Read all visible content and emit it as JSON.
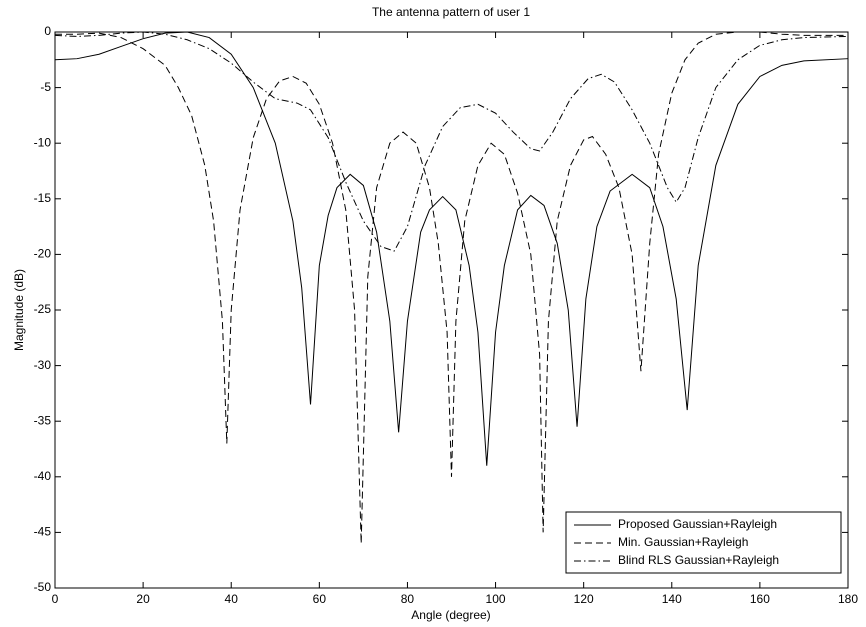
{
  "chart_data": {
    "type": "line",
    "title": "The antenna pattern of user 1",
    "x_label": "Angle (degree)",
    "y_label": "Magnitude (dB)",
    "xlim": [
      0,
      180
    ],
    "ylim": [
      -50,
      0
    ],
    "xticks": [
      0,
      20,
      40,
      60,
      80,
      100,
      120,
      140,
      160,
      180
    ],
    "yticks": [
      -50,
      -45,
      -40,
      -35,
      -30,
      -25,
      -20,
      -15,
      -10,
      -5,
      0
    ],
    "legend": "lower right",
    "series": [
      {
        "name": "Proposed Gaussian+Rayleigh",
        "color": "#000000",
        "dash": "solid",
        "x": [
          0,
          5,
          10,
          15,
          20,
          25,
          30,
          35,
          40,
          45,
          50,
          54,
          56,
          58,
          60,
          62,
          64,
          67,
          70,
          73,
          76,
          78,
          80,
          83,
          85,
          88,
          91,
          94,
          96,
          98,
          100,
          102,
          105,
          108,
          111,
          114,
          116.5,
          118.5,
          120.5,
          123,
          126,
          131,
          135,
          138,
          141,
          143.5,
          146,
          150,
          155,
          160,
          165,
          170,
          180
        ],
        "values": [
          -2.5,
          -2.4,
          -2.0,
          -1.3,
          -0.6,
          -0.1,
          0,
          -0.5,
          -2,
          -5,
          -10,
          -17,
          -23,
          -33.5,
          -21,
          -16.5,
          -14,
          -12.8,
          -13.8,
          -18,
          -26,
          -36,
          -26,
          -18,
          -16,
          -14.8,
          -16,
          -21,
          -27,
          -39,
          -27,
          -21,
          -16,
          -14.7,
          -15.6,
          -19,
          -25,
          -35.5,
          -24,
          -17.5,
          -14.3,
          -12.8,
          -14,
          -17.5,
          -24,
          -34,
          -21,
          -12,
          -6.5,
          -4,
          -3,
          -2.6,
          -2.4
        ]
      },
      {
        "name": "Min. Gaussian+Rayleigh",
        "color": "#000000",
        "dash": "dashed",
        "x": [
          0,
          5,
          10,
          15,
          20,
          25,
          28,
          31,
          34,
          36,
          38,
          39,
          40,
          42,
          45,
          48,
          51,
          54,
          57,
          60,
          63,
          66,
          68,
          69.5,
          71,
          73,
          76,
          79,
          82,
          85,
          87,
          89,
          90,
          91,
          93,
          96,
          99,
          102,
          105,
          108,
          110,
          110.8,
          112,
          114,
          117,
          120,
          122,
          125,
          128,
          131,
          133,
          135,
          137,
          140,
          143,
          146,
          150,
          155,
          160,
          165,
          170,
          180
        ],
        "values": [
          -0.2,
          -0.2,
          -0.1,
          -0.5,
          -1.5,
          -3,
          -5,
          -7.5,
          -12,
          -17,
          -26,
          -37,
          -25,
          -16,
          -9.5,
          -6,
          -4.4,
          -4,
          -4.6,
          -6.5,
          -10,
          -16,
          -25,
          -46,
          -22,
          -14,
          -10,
          -9,
          -10,
          -14,
          -19,
          -27,
          -40,
          -26,
          -17,
          -12,
          -10,
          -11,
          -14.5,
          -20,
          -29,
          -45,
          -26,
          -17,
          -12,
          -9.7,
          -9.4,
          -11,
          -14,
          -20,
          -30.5,
          -19,
          -11,
          -5.5,
          -2.5,
          -1,
          -0.2,
          0,
          0,
          -0.2,
          -0.3,
          -0.3
        ]
      },
      {
        "name": "Blind RLS Gaussian+Rayleigh",
        "color": "#000000",
        "dash": "dashdot",
        "x": [
          0,
          5,
          10,
          15,
          20,
          25,
          30,
          35,
          40,
          45,
          50,
          55,
          58,
          62,
          66,
          70,
          74,
          77,
          80,
          84,
          88,
          92,
          96,
          100,
          104,
          108,
          110,
          113,
          117,
          121,
          124,
          127,
          131,
          135,
          139,
          141,
          143,
          146,
          150,
          155,
          160,
          165,
          170,
          180
        ],
        "values": [
          -0.3,
          -0.4,
          -0.3,
          -0.1,
          0,
          -0.2,
          -0.7,
          -1.5,
          -2.8,
          -4.5,
          -6,
          -6.4,
          -7,
          -9.5,
          -13.5,
          -17,
          -19.3,
          -19.7,
          -17.5,
          -12,
          -8.5,
          -6.8,
          -6.5,
          -7.3,
          -9,
          -10.5,
          -10.7,
          -9,
          -6,
          -4.2,
          -3.8,
          -4.5,
          -7,
          -10,
          -14,
          -15.3,
          -14,
          -9.5,
          -5,
          -2.5,
          -1.2,
          -0.7,
          -0.5,
          -0.4
        ]
      }
    ]
  }
}
